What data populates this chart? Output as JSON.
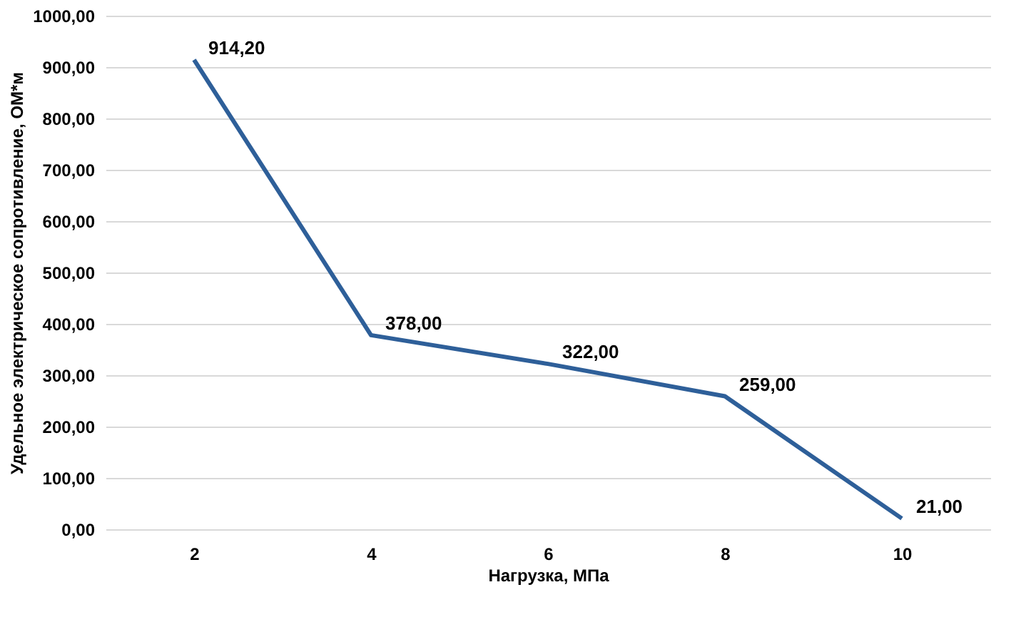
{
  "chart_data": {
    "type": "line",
    "xlabel": "Нагрузка, МПа",
    "ylabel": "Удельное электрическое сопротивление, ОМ*м",
    "categories": [
      "2",
      "4",
      "6",
      "8",
      "10"
    ],
    "series": [
      {
        "color": "#2e5f99",
        "values": [
          914.2,
          378,
          322,
          259,
          21
        ],
        "value_labels": [
          "914,20",
          "378,00",
          "322,00",
          "259,00",
          "21,00"
        ]
      }
    ],
    "ylim": [
      0,
      1000
    ],
    "yticks": [
      {
        "value": 0,
        "label": "0,00"
      },
      {
        "value": 100,
        "label": "100,00"
      },
      {
        "value": 200,
        "label": "200,00"
      },
      {
        "value": 300,
        "label": "300,00"
      },
      {
        "value": 400,
        "label": "400,00"
      },
      {
        "value": 500,
        "label": "500,00"
      },
      {
        "value": 600,
        "label": "600,00"
      },
      {
        "value": 700,
        "label": "700,00"
      },
      {
        "value": 800,
        "label": "800,00"
      },
      {
        "value": 900,
        "label": "900,00"
      },
      {
        "value": 1000,
        "label": "1000,00"
      }
    ],
    "grid": "y",
    "marker": "none",
    "line_style": "solid"
  }
}
